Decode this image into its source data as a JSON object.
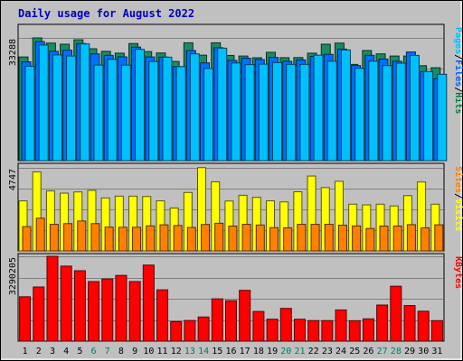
{
  "chart_data": {
    "type": "bar",
    "title": "Daily usage for August 2022",
    "categories": [
      "1",
      "2",
      "3",
      "4",
      "5",
      "6",
      "7",
      "8",
      "9",
      "10",
      "11",
      "12",
      "13",
      "14",
      "15",
      "16",
      "17",
      "18",
      "19",
      "20",
      "21",
      "22",
      "23",
      "24",
      "25",
      "26",
      "27",
      "28",
      "29",
      "30",
      "31"
    ],
    "weekend_days": [
      "6",
      "7",
      "13",
      "14",
      "20",
      "21",
      "27",
      "28"
    ],
    "panels": [
      {
        "id": "top",
        "max_label": "33288",
        "ymax": 33288,
        "legend": [
          "Pages",
          "/",
          "Files",
          "/",
          "Hits"
        ],
        "legend_colors": [
          "#00c0ff",
          "#000000",
          "#0060ff",
          "#000000",
          "#008040"
        ],
        "series": [
          {
            "name": "Hits",
            "color": "#1a8c60",
            "values": [
              28120,
              33288,
              31880,
              31580,
              32780,
              30340,
              29650,
              29150,
              31760,
              29580,
              29200,
              26900,
              31960,
              28610,
              31960,
              28530,
              28370,
              27910,
              29380,
              27930,
              27960,
              29150,
              31580,
              31880,
              26100,
              29870,
              28960,
              28370,
              28370,
              25750,
              25200
            ]
          },
          {
            "name": "Files",
            "color": "#0070ff",
            "values": [
              26800,
              32280,
              29650,
              29950,
              31760,
              28950,
              28560,
              28150,
              30790,
              28120,
              28090,
              25500,
              29860,
              26510,
              30640,
              27190,
              27770,
              27400,
              28000,
              26940,
              27310,
              28270,
              28820,
              30250,
              25780,
              28570,
              27560,
              26960,
              29470,
              24140,
              22240
            ]
          },
          {
            "name": "Pages",
            "color": "#00c0ff",
            "values": [
              25600,
              31350,
              28660,
              28370,
              31650,
              25920,
              27480,
              25900,
              30180,
              26900,
              28060,
              25500,
              28960,
              25000,
              30510,
              26480,
              26050,
              26170,
              26600,
              26100,
              26100,
              28600,
              26960,
              30020,
              25040,
              26990,
              25770,
              26430,
              28550,
              24160,
              23420
            ]
          }
        ]
      },
      {
        "id": "middle",
        "max_label": "4747",
        "ymax": 4747,
        "legend": [
          "Sites",
          "/",
          "Visits"
        ],
        "legend_colors": [
          "#ff8000",
          "#000000",
          "#ffff00"
        ],
        "series": [
          {
            "name": "Visits",
            "color": "#ffff00",
            "values": [
              2860,
              4520,
              3430,
              3300,
              3370,
              3460,
              3030,
              3130,
              3130,
              3110,
              2860,
              2450,
              3340,
              4760,
              3950,
              2850,
              3180,
              3060,
              2860,
              2800,
              3380,
              4280,
              3620,
              3980,
              2670,
              2630,
              2670,
              2570,
              3160,
              3940,
              2670
            ]
          },
          {
            "name": "Sites",
            "color": "#ff8000",
            "values": [
              1390,
              1870,
              1520,
              1560,
              1710,
              1560,
              1360,
              1350,
              1350,
              1430,
              1490,
              1450,
              1340,
              1510,
              1580,
              1420,
              1520,
              1480,
              1330,
              1320,
              1520,
              1520,
              1520,
              1470,
              1430,
              1280,
              1420,
              1420,
              1500,
              1320,
              1490
            ]
          }
        ]
      },
      {
        "id": "bottom",
        "max_label": "3290205",
        "ymax": 3290205,
        "legend": [
          "KBytes"
        ],
        "legend_colors": [
          "#ff0000"
        ],
        "series": [
          {
            "name": "KBytes",
            "color": "#ff0000",
            "values": [
              1720000,
              2100000,
              3290205,
              2910000,
              2730000,
              2310000,
              2410000,
              2550000,
              2310000,
              2950000,
              1990000,
              757000,
              800000,
              937000,
              1640000,
              1570000,
              1970000,
              1150000,
              851000,
              1270000,
              849000,
              797000,
              797000,
              1210000,
              793000,
              864000,
              1400000,
              2130000,
              1380000,
              1160000,
              795000
            ]
          }
        ]
      }
    ]
  }
}
